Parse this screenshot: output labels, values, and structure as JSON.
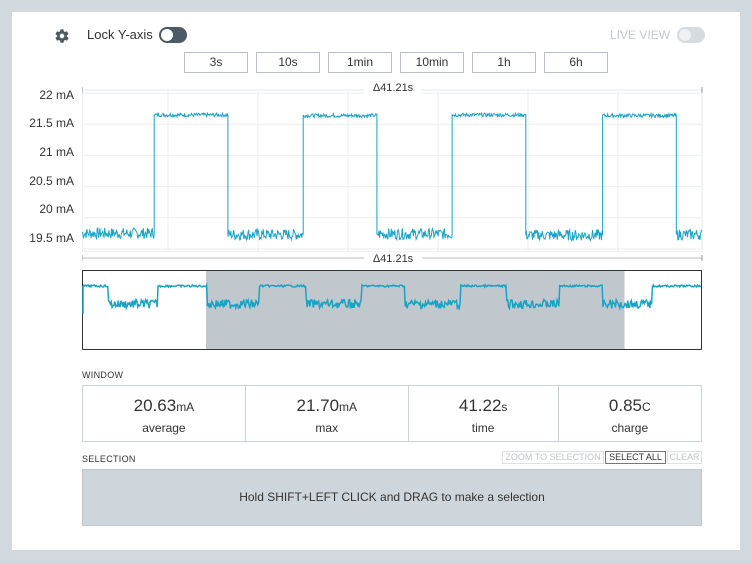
{
  "header": {
    "lock_label": "Lock Y-axis",
    "live_label": "LIVE VIEW"
  },
  "time_buttons": [
    "3s",
    "10s",
    "1min",
    "10min",
    "1h",
    "6h"
  ],
  "chart": {
    "top_delta": "Δ41.21s",
    "bottom_delta": "Δ41.21s",
    "y_ticks": [
      "22 mA",
      "21.5 mA",
      "21 mA",
      "20.5 mA",
      "20 mA",
      "19.5 mA"
    ]
  },
  "chart_data": {
    "type": "line",
    "ylabel": "",
    "y_ticks": [
      "22 mA",
      "21.5 mA",
      "21 mA",
      "20.5 mA",
      "20 mA",
      "19.5 mA"
    ],
    "ylim": [
      19.45,
      22.05
    ],
    "xlim": [
      0,
      41.21
    ],
    "series": [
      {
        "color": "#1aa3c4",
        "x": [
          0,
          4.8,
          4.8,
          9.7,
          9.7,
          14.7,
          14.7,
          19.6,
          19.6,
          24.6,
          24.6,
          29.5,
          29.5,
          34.6,
          34.6,
          39.5,
          39.5,
          41.21
        ],
        "values": [
          19.75,
          19.75,
          21.65,
          21.65,
          19.73,
          19.73,
          21.64,
          21.64,
          19.74,
          19.74,
          21.65,
          21.65,
          19.72,
          19.72,
          21.64,
          21.64,
          19.73,
          19.73
        ]
      }
    ],
    "noise_ma": 0.1,
    "overview_selection_fraction": [
      0.2,
      0.875
    ]
  },
  "window": {
    "title": "WINDOW",
    "stats": [
      {
        "value": "20.63",
        "unit": "mA",
        "label": "average"
      },
      {
        "value": "21.70",
        "unit": "mA",
        "label": "max"
      },
      {
        "value": "41.22",
        "unit": "s",
        "label": "time"
      },
      {
        "value": "0.85",
        "unit": "C",
        "label": "charge"
      }
    ]
  },
  "selection": {
    "title": "SELECTION",
    "zoom_label": "ZOOM TO SELECTION",
    "select_all_label": "SELECT ALL",
    "clear_label": "CLEAR",
    "hint": "Hold SHIFT+LEFT CLICK and DRAG to make a selection"
  },
  "colors": {
    "trace": "#1aa3c4",
    "selection_shade": "#c1c8cd",
    "toggle_on": "#4b5a64"
  }
}
